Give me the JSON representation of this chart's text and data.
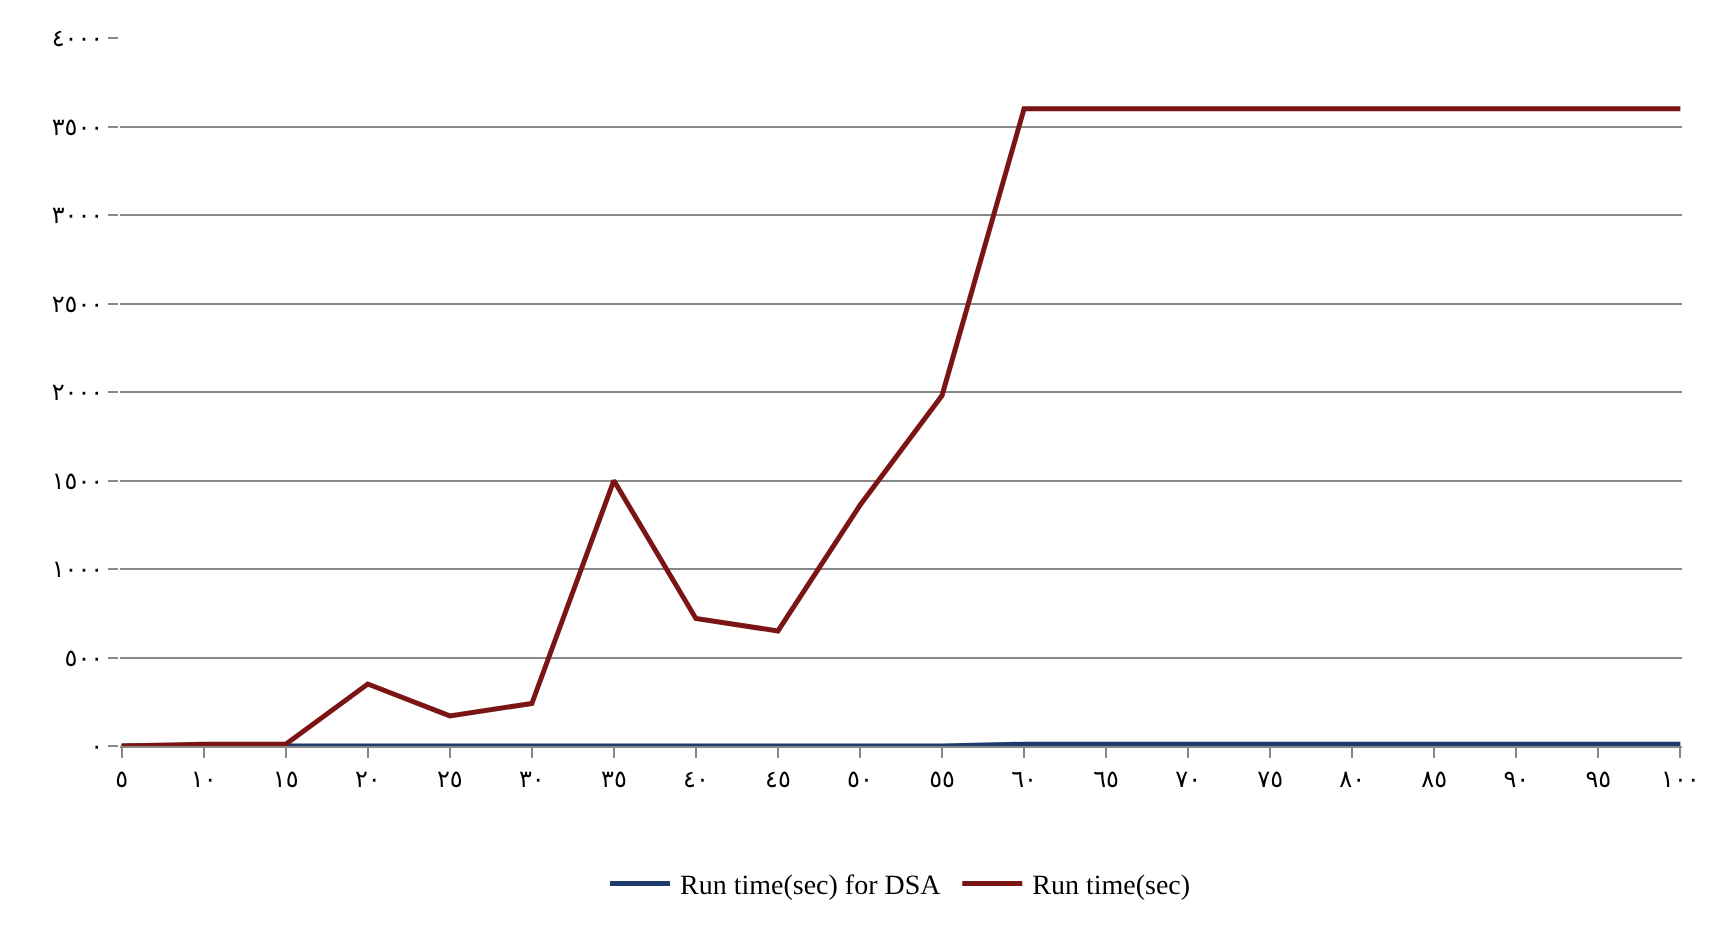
{
  "chart_data": {
    "type": "line",
    "categories": [
      "٥",
      "١٠",
      "١٥",
      "٢٠",
      "٢٥",
      "٣٠",
      "٣٥",
      "٤٠",
      "٤٥",
      "٥٠",
      "٥٥",
      "٦٠",
      "٦٥",
      "٧٠",
      "٧٥",
      "٨٠",
      "٨٥",
      "٩٠",
      "٩٥",
      "١٠٠"
    ],
    "series": [
      {
        "name": "Run time(sec) for DSA",
        "color": "#1f3a6e",
        "values": [
          0,
          0,
          0,
          0,
          0,
          0,
          0,
          0,
          0,
          0,
          0,
          10,
          10,
          10,
          10,
          10,
          10,
          10,
          10,
          10
        ]
      },
      {
        "name": "Run time(sec)",
        "color": "#7b1414",
        "values": [
          0,
          10,
          10,
          350,
          170,
          240,
          1500,
          720,
          650,
          1360,
          1980,
          3600,
          3600,
          3600,
          3600,
          3600,
          3600,
          3600,
          3600,
          3600
        ]
      }
    ],
    "ylim": [
      0,
      4000
    ],
    "yticks": [
      {
        "value": 0,
        "label": "٠"
      },
      {
        "value": 500,
        "label": "٥٠٠"
      },
      {
        "value": 1000,
        "label": "١٠٠٠"
      },
      {
        "value": 1500,
        "label": "١٥٠٠"
      },
      {
        "value": 2000,
        "label": "٢٠٠٠"
      },
      {
        "value": 2500,
        "label": "٢٥٠٠"
      },
      {
        "value": 3000,
        "label": "٣٠٠٠"
      },
      {
        "value": 3500,
        "label": "٣٥٠٠"
      },
      {
        "value": 4000,
        "label": "٤٠٠٠"
      }
    ],
    "grid": "y",
    "legend": "bottom",
    "marker": "none",
    "line_style": "solid"
  }
}
